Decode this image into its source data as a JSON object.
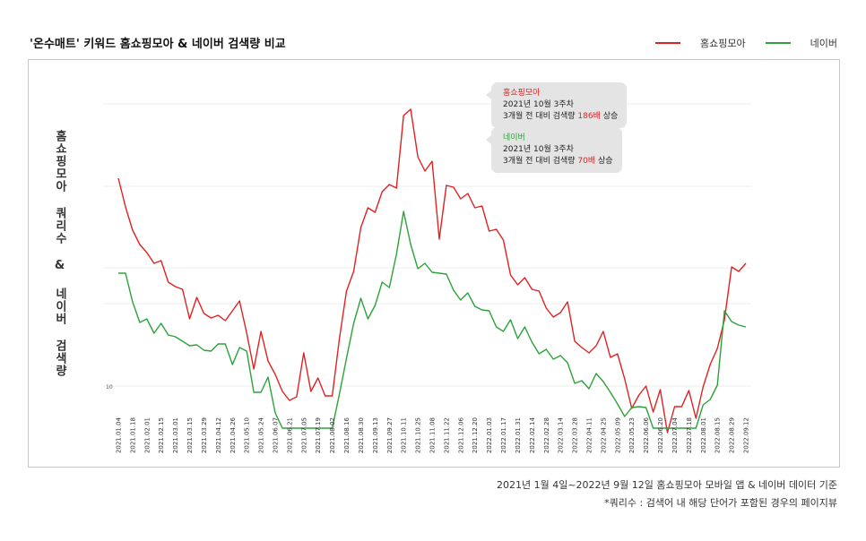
{
  "title": "'온수매트' 키워드 홈쇼핑모아 & 네이버 검색량 비교",
  "legend": [
    {
      "name": "홈쇼핑모아",
      "color": "#e02222"
    },
    {
      "name": "네이버",
      "color": "#2aa33a"
    }
  ],
  "ylabel": "홈쇼핑모아 쿼리수 & 네이버 검색량",
  "footnotes": {
    "line1": "2021년 1월 4일~2022년 9월 12일 홈쇼핑모아 모바일 앱 & 네이버 데이터 기준",
    "line2": "*쿼리수 : 검색어 내 해당 단어가 포함된 경우의 페이지뷰"
  },
  "tooltips": [
    {
      "head": "홈쇼핑모아",
      "date": "2021년 10월 3주차",
      "pre": "3개월 전 대비 검색량 ",
      "em": "186배",
      "post": " 상승"
    },
    {
      "head": "네이버",
      "date": "2021년 10월 3주차",
      "pre": "3개월 전 대비 검색량 ",
      "em": "70배",
      "post": " 상승"
    }
  ],
  "chart_data": {
    "type": "line",
    "y_tick_labels": [
      "10"
    ],
    "x": [
      "2021.01.04",
      "2021.01.11",
      "2021.01.18",
      "2021.01.25",
      "2021.02.01",
      "2021.02.08",
      "2021.02.15",
      "2021.02.22",
      "2021.03.01",
      "2021.03.08",
      "2021.03.15",
      "2021.03.22",
      "2021.03.29",
      "2021.04.05",
      "2021.04.12",
      "2021.04.19",
      "2021.04.26",
      "2021.05.03",
      "2021.05.10",
      "2021.05.17",
      "2021.05.24",
      "2021.05.31",
      "2021.06.07",
      "2021.06.14",
      "2021.06.21",
      "2021.06.28",
      "2021.07.05",
      "2021.07.12",
      "2021.07.19",
      "2021.07.26",
      "2021.08.02",
      "2021.08.09",
      "2021.08.16",
      "2021.08.23",
      "2021.08.30",
      "2021.09.06",
      "2021.09.13",
      "2021.09.20",
      "2021.09.27",
      "2021.10.04",
      "2021.10.11",
      "2021.10.18",
      "2021.10.25",
      "2021.11.01",
      "2021.11.08",
      "2021.11.15",
      "2021.11.22",
      "2021.11.29",
      "2021.12.06",
      "2021.12.13",
      "2021.12.20",
      "2021.12.27",
      "2022.01.03",
      "2022.01.10",
      "2022.01.17",
      "2022.01.24",
      "2022.01.31",
      "2022.02.07",
      "2022.02.14",
      "2022.02.21",
      "2022.02.28",
      "2022.03.07",
      "2022.03.14",
      "2022.03.21",
      "2022.03.28",
      "2022.04.04",
      "2022.04.11",
      "2022.04.18",
      "2022.04.25",
      "2022.05.02",
      "2022.05.09",
      "2022.05.16",
      "2022.05.23",
      "2022.05.30",
      "2022.06.06",
      "2022.06.13",
      "2022.06.20",
      "2022.06.27",
      "2022.07.04",
      "2022.07.11",
      "2022.07.18",
      "2022.07.25",
      "2022.08.01",
      "2022.08.08",
      "2022.08.15",
      "2022.08.22",
      "2022.08.29",
      "2022.09.05",
      "2022.09.12"
    ],
    "x_tick_labels": [
      "2021.01.04",
      "2021.01.18",
      "2021.02.01",
      "2021.02.15",
      "2021.03.01",
      "2021.03.15",
      "2021.03.29",
      "2021.04.12",
      "2021.04.26",
      "2021.05.10",
      "2021.05.24",
      "2021.06.07",
      "2021.06.21",
      "2021.07.05",
      "2021.07.19",
      "2021.08.02",
      "2021.08.16",
      "2021.08.30",
      "2021.09.13",
      "2021.09.27",
      "2021.10.11",
      "2021.10.25",
      "2021.11.08",
      "2021.11.22",
      "2021.12.06",
      "2021.12.20",
      "2022.01.03",
      "2022.01.17",
      "2022.01.31",
      "2022.02.14",
      "2022.02.28",
      "2022.03.14",
      "2022.03.28",
      "2022.04.11",
      "2022.04.25",
      "2022.05.09",
      "2022.05.23",
      "2022.06.06",
      "2022.06.20",
      "2022.07.04",
      "2022.07.18",
      "2022.08.01",
      "2022.08.15",
      "2022.08.29",
      "2022.09.12"
    ],
    "ylim": [
      0,
      365
    ],
    "series": [
      {
        "name": "홈쇼핑모아",
        "color": "#e02222",
        "values": [
          261,
          229,
          203,
          187,
          178,
          166,
          169,
          145,
          140,
          137,
          104,
          128,
          110,
          105,
          108,
          102,
          113,
          124,
          88,
          48,
          90,
          57,
          42,
          23,
          13,
          17,
          66,
          23,
          38,
          18,
          18,
          82,
          135,
          157,
          206,
          228,
          223,
          246,
          254,
          250,
          331,
          338,
          285,
          269,
          280,
          193,
          253,
          251,
          238,
          244,
          228,
          230,
          202,
          204,
          192,
          153,
          142,
          150,
          137,
          135,
          116,
          106,
          111,
          123,
          79,
          72,
          66,
          74,
          90,
          61,
          65,
          37,
          4,
          19,
          29,
          0,
          25,
          -23,
          6,
          6,
          24,
          -7,
          28,
          53,
          71,
          103,
          162,
          157,
          166
        ]
      },
      {
        "name": "네이버",
        "color": "#2aa33a",
        "values": [
          155,
          155,
          123,
          100,
          104,
          88,
          99,
          86,
          84,
          79,
          74,
          75,
          69,
          68,
          76,
          76,
          53,
          72,
          68,
          22,
          22,
          39,
          -1,
          -18,
          -18,
          -18,
          -18,
          -18,
          -18,
          -18,
          -18,
          20,
          60,
          99,
          127,
          104,
          119,
          145,
          139,
          176,
          224,
          187,
          160,
          166,
          156,
          155,
          154,
          136,
          125,
          133,
          118,
          114,
          113,
          95,
          90,
          103,
          82,
          95,
          78,
          65,
          70,
          59,
          63,
          55,
          32,
          35,
          26,
          43,
          34,
          22,
          9,
          -5,
          5,
          6,
          5,
          -18,
          -18,
          -18,
          -18,
          -18,
          -18,
          -18,
          8,
          14,
          30,
          113,
          101,
          97,
          95
        ]
      }
    ]
  }
}
